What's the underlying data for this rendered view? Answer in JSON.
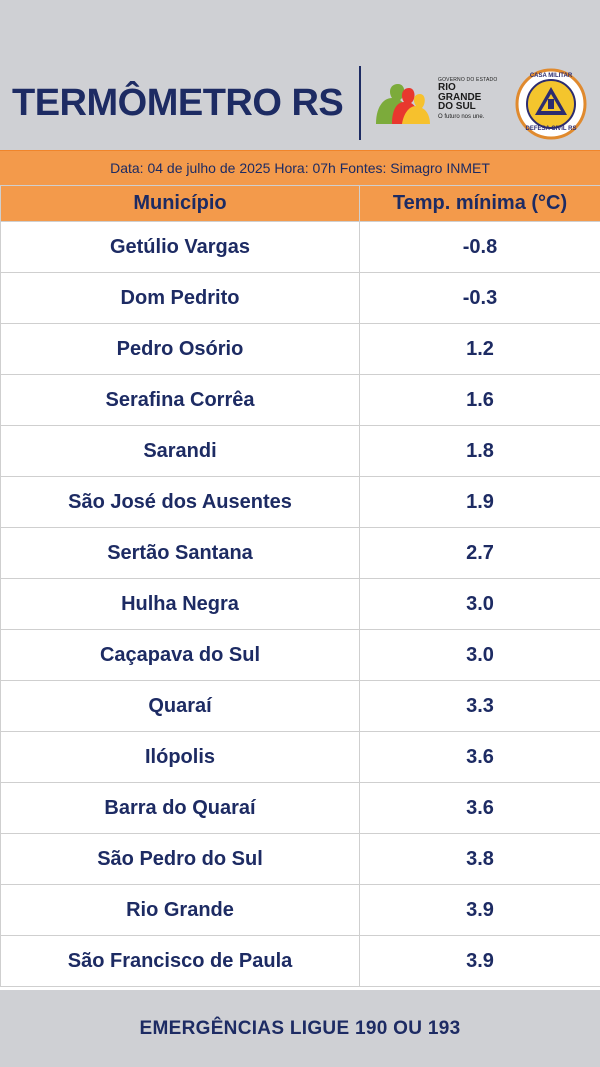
{
  "header": {
    "title": "TERMÔMETRO RS",
    "gov_logo": {
      "small_text": "GOVERNO DO ESTADO",
      "line1": "RIO",
      "line2": "GRANDE",
      "line3": "DO SUL",
      "slogan": "O futuro nos une."
    },
    "cm_logo": {
      "top_text": "CASA MILITAR",
      "bottom_text": "DEFESA CIVIL RS"
    }
  },
  "info_bar": {
    "text": "Data: 04 de julho de 2025 Hora: 07h Fontes: Simagro INMET"
  },
  "table": {
    "headers": [
      "Município",
      "Temp. mínima (°C)"
    ],
    "rows": [
      {
        "municipio": "Getúlio Vargas",
        "temp": "-0.8"
      },
      {
        "municipio": "Dom Pedrito",
        "temp": "-0.3"
      },
      {
        "municipio": "Pedro Osório",
        "temp": "1.2"
      },
      {
        "municipio": "Serafina Corrêa",
        "temp": "1.6"
      },
      {
        "municipio": "Sarandi",
        "temp": "1.8"
      },
      {
        "municipio": "São José dos Ausentes",
        "temp": "1.9"
      },
      {
        "municipio": "Sertão Santana",
        "temp": "2.7"
      },
      {
        "municipio": "Hulha Negra",
        "temp": "3.0"
      },
      {
        "municipio": "Caçapava do Sul",
        "temp": "3.0"
      },
      {
        "municipio": "Quaraí",
        "temp": "3.3"
      },
      {
        "municipio": "Ilópolis",
        "temp": "3.6"
      },
      {
        "municipio": "Barra do Quaraí",
        "temp": "3.6"
      },
      {
        "municipio": "São Pedro do Sul",
        "temp": "3.8"
      },
      {
        "municipio": "Rio Grande",
        "temp": "3.9"
      },
      {
        "municipio": "São Francisco de Paula",
        "temp": "3.9"
      }
    ]
  },
  "footer": {
    "text": "EMERGÊNCIAS LIGUE 190 OU 193"
  },
  "colors": {
    "navy": "#1d2b63",
    "orange": "#f39a4b",
    "background": "#cfd0d4"
  }
}
